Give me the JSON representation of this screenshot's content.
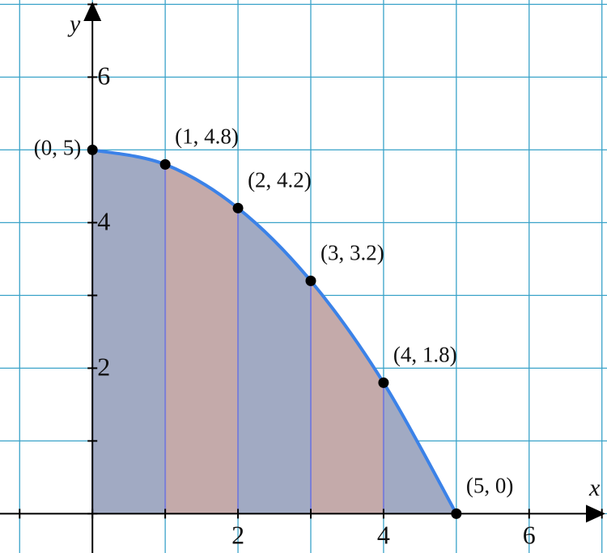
{
  "chart_data": {
    "type": "area",
    "x_label": "x",
    "y_label": "y",
    "x": [
      0,
      1,
      2,
      3,
      4,
      5
    ],
    "y": [
      5,
      4.8,
      4.2,
      3.2,
      1.8,
      0
    ],
    "point_labels": [
      "(0, 5)",
      "(1, 4.8)",
      "(2, 4.2)",
      "(3, 3.2)",
      "(4, 1.8)",
      "(5, 0)"
    ],
    "xlim": [
      -1.27,
      7.07
    ],
    "ylim": [
      -0.54,
      7.06
    ],
    "xticks": [
      2,
      4,
      6
    ],
    "yticks": [
      2,
      4,
      6
    ],
    "xgrid": [
      -1,
      0,
      1,
      2,
      3,
      4,
      5,
      6,
      7
    ],
    "ygrid": [
      0,
      1,
      2,
      3,
      4,
      5,
      6,
      7
    ],
    "grid": true,
    "curve_color": "#3b82e8",
    "strip_colors": [
      "#a1aac3",
      "#c4aaaa"
    ],
    "point_color": "#000000"
  }
}
